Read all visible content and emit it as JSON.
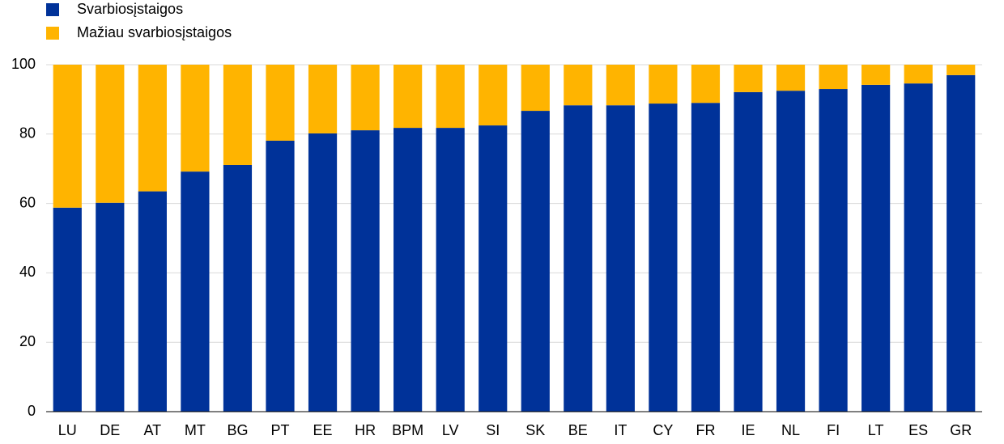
{
  "chart_data": {
    "type": "stacked-bar",
    "categories": [
      "LU",
      "DE",
      "AT",
      "MT",
      "BG",
      "PT",
      "EE",
      "HR",
      "BPM",
      "LV",
      "SI",
      "SK",
      "BE",
      "IT",
      "CY",
      "FR",
      "IE",
      "NL",
      "FI",
      "LT",
      "ES",
      "GR"
    ],
    "series": [
      {
        "name": "Svarbiosįstaigos",
        "color": "#003299",
        "values": [
          58.8,
          60.2,
          63.5,
          69.2,
          71.1,
          78.1,
          80.2,
          81.1,
          81.8,
          81.8,
          82.5,
          86.7,
          88.3,
          88.3,
          88.8,
          89.0,
          92.1,
          92.5,
          93.0,
          94.2,
          94.6,
          97.0
        ]
      },
      {
        "name": "Mažiau svarbiosįstaigos",
        "color": "#ffb400",
        "values": [
          41.2,
          39.8,
          36.5,
          30.8,
          28.9,
          21.9,
          19.8,
          18.9,
          18.2,
          18.2,
          17.5,
          13.3,
          11.7,
          11.7,
          11.2,
          11.0,
          7.9,
          7.5,
          7.0,
          5.8,
          5.4,
          3.0
        ]
      }
    ],
    "ylim": [
      0,
      100
    ],
    "yticks": [
      0,
      20,
      40,
      60,
      80,
      100
    ],
    "grid": true
  }
}
